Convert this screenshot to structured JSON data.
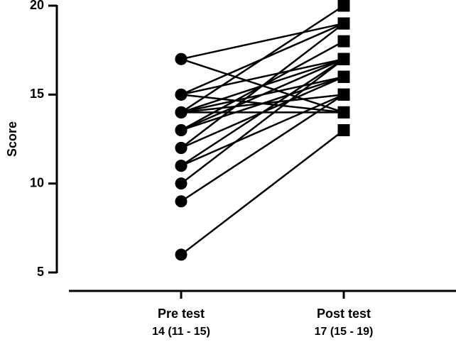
{
  "chart_data": {
    "type": "paired",
    "ylabel": "Score",
    "categories": [
      "Pre test",
      "Post test"
    ],
    "category_stats": [
      "14 (11 - 15)",
      "17 (15 - 19)"
    ],
    "markers": [
      "circle",
      "square"
    ],
    "color": "#000000",
    "values": [
      [
        17,
        19
      ],
      [
        17,
        14
      ],
      [
        15,
        17
      ],
      [
        15,
        14
      ],
      [
        15,
        19
      ],
      [
        14,
        20
      ],
      [
        14,
        17
      ],
      [
        14,
        15
      ],
      [
        14,
        16
      ],
      [
        14,
        14
      ],
      [
        13,
        17
      ],
      [
        13,
        18
      ],
      [
        13,
        16
      ],
      [
        12,
        19
      ],
      [
        12,
        16
      ],
      [
        11,
        17
      ],
      [
        11,
        15
      ],
      [
        10,
        17
      ],
      [
        9,
        15
      ],
      [
        6,
        13
      ]
    ],
    "ylim": [
      5,
      20
    ],
    "yticks": [
      5,
      10,
      15,
      20
    ]
  }
}
